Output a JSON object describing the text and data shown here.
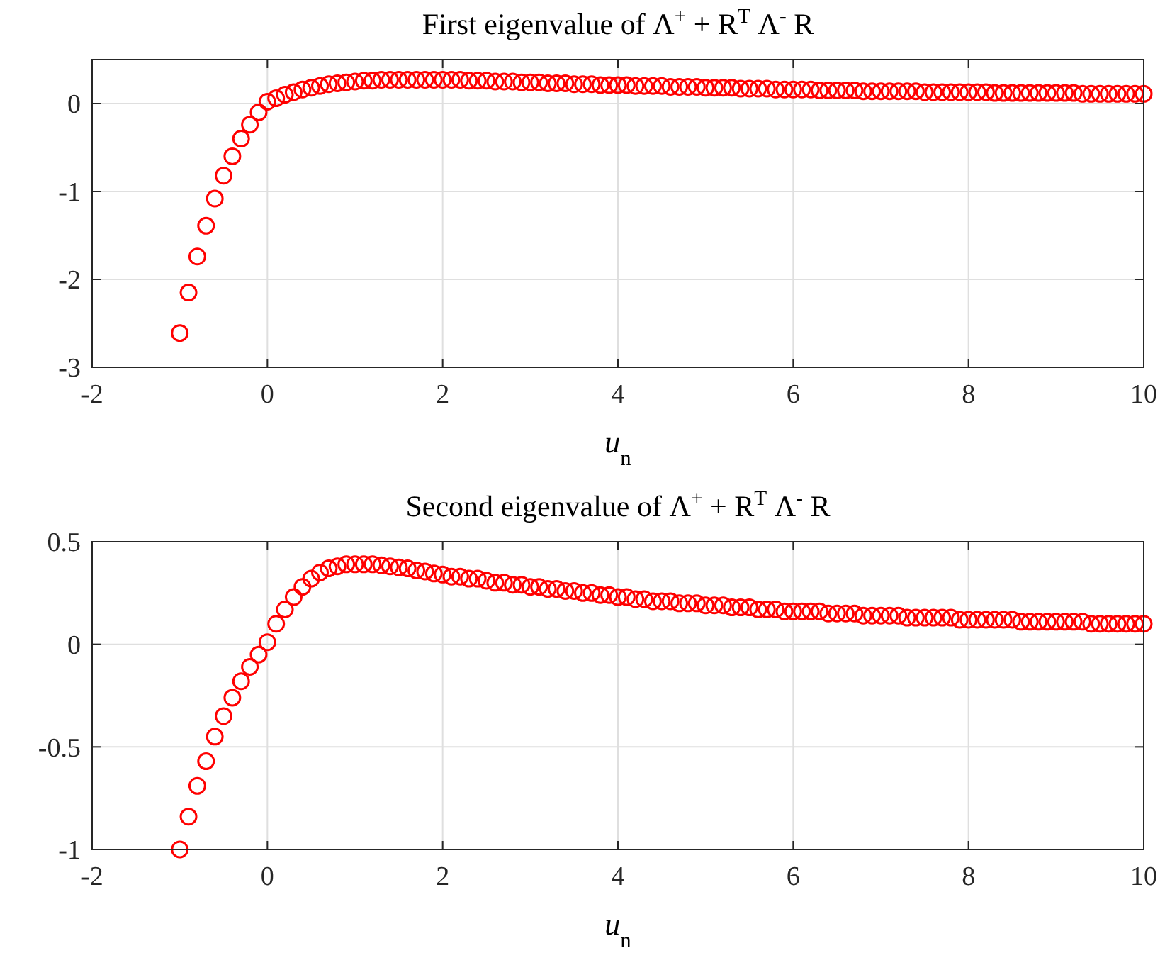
{
  "chart_data": [
    {
      "type": "scatter",
      "title": "First eigenvalue of Λ$^{+}$ + R$^{T}$ Λ$^{-}$ R",
      "xlabel": "u$_{n}$",
      "x": [
        -1,
        -0.9,
        -0.8,
        -0.7,
        -0.6,
        -0.5,
        -0.4,
        -0.3,
        -0.2,
        -0.1,
        0,
        0.1,
        0.2,
        0.3,
        0.4,
        0.5,
        0.6,
        0.7,
        0.8,
        0.9,
        1,
        1.1,
        1.2,
        1.3,
        1.4,
        1.5,
        1.6,
        1.7,
        1.8,
        1.9,
        2,
        2.1,
        2.2,
        2.3,
        2.4,
        2.5,
        2.6,
        2.7,
        2.8,
        2.9,
        3,
        3.1,
        3.2,
        3.3,
        3.4,
        3.5,
        3.6,
        3.7,
        3.8,
        3.9,
        4,
        4.1,
        4.2,
        4.3,
        4.4,
        4.5,
        4.6,
        4.7,
        4.8,
        4.9,
        5,
        5.1,
        5.2,
        5.3,
        5.4,
        5.5,
        5.6,
        5.7,
        5.8,
        5.9,
        6,
        6.1,
        6.2,
        6.3,
        6.4,
        6.5,
        6.6,
        6.7,
        6.8,
        6.9,
        7,
        7.1,
        7.2,
        7.3,
        7.4,
        7.5,
        7.6,
        7.7,
        7.8,
        7.9,
        8,
        8.1,
        8.2,
        8.3,
        8.4,
        8.5,
        8.6,
        8.7,
        8.8,
        8.9,
        9,
        9.1,
        9.2,
        9.3,
        9.4,
        9.5,
        9.6,
        9.7,
        9.8,
        9.9,
        10
      ],
      "series": [
        {
          "color": "#ff0000",
          "values": [
            -2.61,
            -2.15,
            -1.74,
            -1.39,
            -1.08,
            -0.82,
            -0.6,
            -0.4,
            -0.24,
            -0.1,
            0.02,
            0.06,
            0.1,
            0.13,
            0.16,
            0.18,
            0.2,
            0.22,
            0.23,
            0.24,
            0.25,
            0.26,
            0.26,
            0.27,
            0.27,
            0.27,
            0.27,
            0.27,
            0.27,
            0.27,
            0.27,
            0.27,
            0.27,
            0.26,
            0.26,
            0.26,
            0.25,
            0.25,
            0.25,
            0.24,
            0.24,
            0.24,
            0.23,
            0.23,
            0.23,
            0.22,
            0.22,
            0.22,
            0.21,
            0.21,
            0.21,
            0.21,
            0.2,
            0.2,
            0.2,
            0.2,
            0.19,
            0.19,
            0.19,
            0.19,
            0.18,
            0.18,
            0.18,
            0.18,
            0.17,
            0.17,
            0.17,
            0.17,
            0.16,
            0.16,
            0.16,
            0.16,
            0.16,
            0.15,
            0.15,
            0.15,
            0.15,
            0.15,
            0.14,
            0.14,
            0.14,
            0.14,
            0.14,
            0.14,
            0.14,
            0.13,
            0.13,
            0.13,
            0.13,
            0.13,
            0.13,
            0.13,
            0.13,
            0.12,
            0.12,
            0.12,
            0.12,
            0.12,
            0.12,
            0.12,
            0.12,
            0.12,
            0.12,
            0.11,
            0.11,
            0.11,
            0.11,
            0.11,
            0.11,
            0.11,
            0.11
          ]
        }
      ],
      "xlim": [
        -2,
        10
      ],
      "xticks": [
        -2,
        0,
        2,
        4,
        6,
        8,
        10
      ],
      "ylim": [
        -3,
        0.5
      ],
      "yticks": [
        -3,
        -2,
        -1,
        0
      ],
      "grid": true,
      "marker": "circle"
    },
    {
      "type": "scatter",
      "title": "Second eigenvalue of Λ$^{+}$ + R$^{T}$ Λ$^{-}$ R",
      "xlabel": "u$_{n}$",
      "x": [
        -1,
        -0.9,
        -0.8,
        -0.7,
        -0.6,
        -0.5,
        -0.4,
        -0.3,
        -0.2,
        -0.1,
        0,
        0.1,
        0.2,
        0.3,
        0.4,
        0.5,
        0.6,
        0.7,
        0.8,
        0.9,
        1,
        1.1,
        1.2,
        1.3,
        1.4,
        1.5,
        1.6,
        1.7,
        1.8,
        1.9,
        2,
        2.1,
        2.2,
        2.3,
        2.4,
        2.5,
        2.6,
        2.7,
        2.8,
        2.9,
        3,
        3.1,
        3.2,
        3.3,
        3.4,
        3.5,
        3.6,
        3.7,
        3.8,
        3.9,
        4,
        4.1,
        4.2,
        4.3,
        4.4,
        4.5,
        4.6,
        4.7,
        4.8,
        4.9,
        5,
        5.1,
        5.2,
        5.3,
        5.4,
        5.5,
        5.6,
        5.7,
        5.8,
        5.9,
        6,
        6.1,
        6.2,
        6.3,
        6.4,
        6.5,
        6.6,
        6.7,
        6.8,
        6.9,
        7,
        7.1,
        7.2,
        7.3,
        7.4,
        7.5,
        7.6,
        7.7,
        7.8,
        7.9,
        8,
        8.1,
        8.2,
        8.3,
        8.4,
        8.5,
        8.6,
        8.7,
        8.8,
        8.9,
        9,
        9.1,
        9.2,
        9.3,
        9.4,
        9.5,
        9.6,
        9.7,
        9.8,
        9.9,
        10
      ],
      "series": [
        {
          "color": "#ff0000",
          "values": [
            -1,
            -0.84,
            -0.69,
            -0.57,
            -0.45,
            -0.35,
            -0.26,
            -0.18,
            -0.11,
            -0.05,
            0.01,
            0.1,
            0.17,
            0.23,
            0.28,
            0.32,
            0.35,
            0.37,
            0.38,
            0.39,
            0.39,
            0.39,
            0.39,
            0.385,
            0.38,
            0.375,
            0.37,
            0.36,
            0.355,
            0.345,
            0.34,
            0.33,
            0.33,
            0.32,
            0.32,
            0.31,
            0.3,
            0.3,
            0.29,
            0.29,
            0.28,
            0.28,
            0.27,
            0.27,
            0.26,
            0.26,
            0.25,
            0.25,
            0.24,
            0.24,
            0.23,
            0.23,
            0.22,
            0.22,
            0.21,
            0.21,
            0.21,
            0.2,
            0.2,
            0.2,
            0.19,
            0.19,
            0.19,
            0.18,
            0.18,
            0.18,
            0.17,
            0.17,
            0.17,
            0.16,
            0.16,
            0.16,
            0.16,
            0.16,
            0.15,
            0.15,
            0.15,
            0.15,
            0.14,
            0.14,
            0.14,
            0.14,
            0.14,
            0.13,
            0.13,
            0.13,
            0.13,
            0.13,
            0.13,
            0.12,
            0.12,
            0.12,
            0.12,
            0.12,
            0.12,
            0.12,
            0.11,
            0.11,
            0.11,
            0.11,
            0.11,
            0.11,
            0.11,
            0.11,
            0.1,
            0.1,
            0.1,
            0.1,
            0.1,
            0.1,
            0.1
          ]
        }
      ],
      "xlim": [
        -2,
        10
      ],
      "xticks": [
        -2,
        0,
        2,
        4,
        6,
        8,
        10
      ],
      "ylim": [
        -1,
        0.5
      ],
      "yticks": [
        -1,
        -0.5,
        0,
        0.5
      ],
      "grid": true,
      "marker": "circle"
    }
  ]
}
